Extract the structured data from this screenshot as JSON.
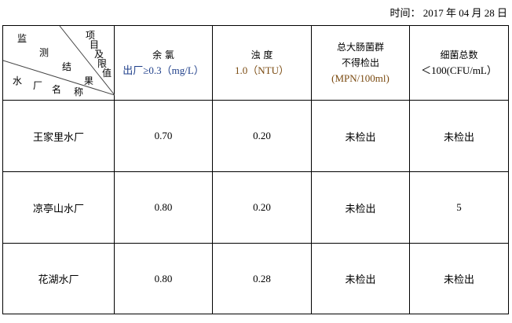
{
  "date_label": "时间：",
  "date_value": "2017 年 04 月 28 日",
  "corner": {
    "top_right": [
      "项",
      "目",
      "及",
      "限",
      "值"
    ],
    "middle": [
      "监",
      "测",
      "结",
      "果"
    ],
    "bottom_left": [
      "水",
      "厂",
      "名",
      "称"
    ]
  },
  "headers": [
    {
      "line1": "余 氯",
      "line2": "出厂≥0.3（mg/L）"
    },
    {
      "line1": "浊 度",
      "line2": "1.0（NTU）"
    },
    {
      "line1": "总大肠菌群",
      "line2": "不得检出",
      "line3": "(MPN/100ml)"
    },
    {
      "line1": "细菌总数",
      "line2": "＜100(CFU/mL）"
    }
  ],
  "rows": [
    {
      "name": "王家里水厂",
      "chlorine": "0.70",
      "turbidity": "0.20",
      "coliform": "未检出",
      "bacteria": "未检出"
    },
    {
      "name": "凉亭山水厂",
      "chlorine": "0.80",
      "turbidity": "0.20",
      "coliform": "未检出",
      "bacteria": "5"
    },
    {
      "name": "花湖水厂",
      "chlorine": "0.80",
      "turbidity": "0.28",
      "coliform": "未检出",
      "bacteria": "未检出"
    }
  ]
}
